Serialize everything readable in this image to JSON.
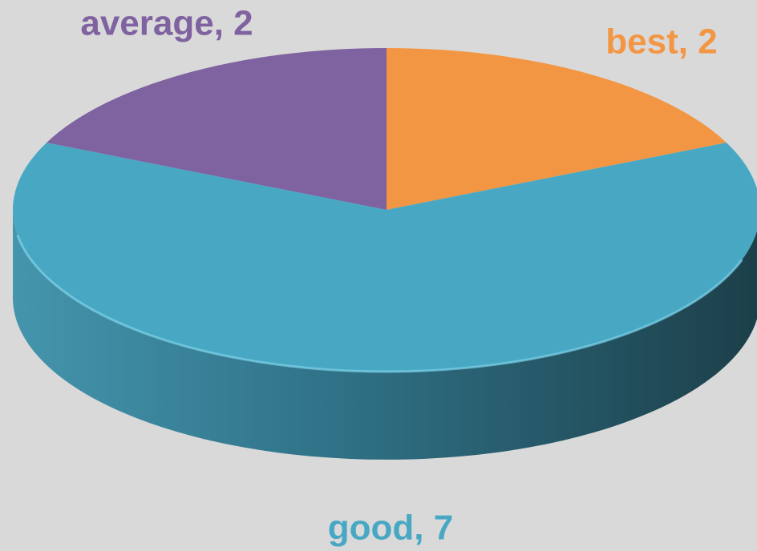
{
  "chart_data": {
    "type": "pie",
    "values": [
      2,
      7,
      2
    ],
    "value_labels": [
      "best, 2",
      "good, 7",
      "average, 2"
    ],
    "colors": [
      "#f39644",
      "#48a8c4",
      "#7f62a0"
    ]
  }
}
